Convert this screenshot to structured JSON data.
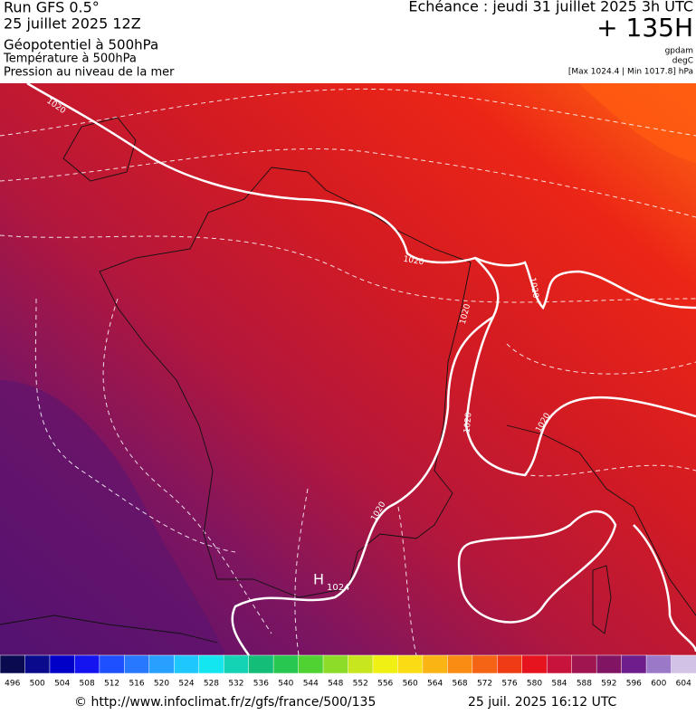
{
  "header": {
    "run": "Run GFS 0.5°",
    "date": "25 juillet 2025 12Z",
    "layers": [
      "Géopotentiel à 500hPa",
      "Température à 500hPa",
      "Pression au niveau de la mer"
    ],
    "echeance": "Echéance : jeudi 31 juillet 2025 3h UTC",
    "lead": "+ 135H",
    "units": [
      "gpdam",
      "degC"
    ],
    "range": "[Max 1024.4 | Min 1017.8] hPa"
  },
  "map": {
    "isobar_labels": [
      "1020",
      "1020",
      "1020",
      "1020",
      "1020",
      "1020",
      "1020"
    ],
    "high": {
      "letter": "H",
      "value": "1024"
    }
  },
  "colorbar": {
    "labels": [
      496,
      500,
      504,
      508,
      512,
      516,
      520,
      524,
      528,
      532,
      536,
      540,
      544,
      548,
      552,
      556,
      560,
      564,
      568,
      572,
      576,
      580,
      584,
      588,
      592,
      596,
      600,
      604
    ]
  },
  "footer": {
    "url": "© http://www.infoclimat.fr/z/gfs/france/500/135",
    "timestamp": "25 juil. 2025 16:12 UTC"
  }
}
